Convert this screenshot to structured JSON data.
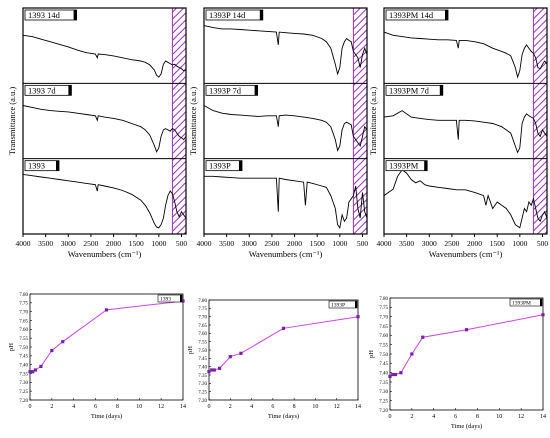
{
  "colors": {
    "ftir_line": "#000000",
    "hatch": "#9b30c8",
    "ph_line": "#cc44ee",
    "ph_point": "#7a1fa8"
  },
  "chart_data": [
    {
      "type": "line",
      "panel": "FTIR-1393",
      "xlabel": "Wavenumbers (cm⁻¹)",
      "ylabel": "Transmittance (a.u.)",
      "xlim": [
        4000,
        400
      ],
      "x_ticks": [
        "4000",
        "3500",
        "3000",
        "2500",
        "2000",
        "1500",
        "1000",
        "500"
      ],
      "series": [
        {
          "name": "1393_14d",
          "x": [
            4000,
            3800,
            3600,
            3400,
            3200,
            3000,
            2800,
            2600,
            2400,
            2360,
            2340,
            2200,
            2000,
            1800,
            1600,
            1400,
            1300,
            1200,
            1100,
            1050,
            1000,
            950,
            900,
            850,
            800,
            750,
            700,
            650,
            600,
            550,
            500,
            450,
            400
          ],
          "y": [
            0.7,
            0.68,
            0.64,
            0.6,
            0.56,
            0.52,
            0.47,
            0.43,
            0.41,
            0.35,
            0.41,
            0.4,
            0.38,
            0.35,
            0.32,
            0.3,
            0.28,
            0.24,
            0.16,
            0.08,
            0.05,
            0.1,
            0.25,
            0.3,
            0.28,
            0.26,
            0.24,
            0.25,
            0.22,
            0.2,
            0.18,
            0.15,
            0.17
          ]
        },
        {
          "name": "1393_7d",
          "x": [
            4000,
            3800,
            3600,
            3400,
            3200,
            3000,
            2800,
            2600,
            2400,
            2360,
            2340,
            2200,
            2000,
            1800,
            1600,
            1400,
            1300,
            1200,
            1100,
            1050,
            1000,
            950,
            900,
            850,
            800,
            750,
            700,
            650,
            600,
            550,
            500,
            450,
            400
          ],
          "y": [
            0.78,
            0.75,
            0.72,
            0.7,
            0.69,
            0.68,
            0.66,
            0.64,
            0.62,
            0.55,
            0.62,
            0.6,
            0.58,
            0.55,
            0.5,
            0.45,
            0.4,
            0.32,
            0.16,
            0.06,
            0.12,
            0.3,
            0.4,
            0.42,
            0.4,
            0.38,
            0.42,
            0.4,
            0.35,
            0.3,
            0.28,
            0.25,
            0.3
          ]
        },
        {
          "name": "1393",
          "x": [
            4000,
            3800,
            3600,
            3400,
            3200,
            3000,
            2800,
            2600,
            2400,
            2360,
            2340,
            2200,
            2000,
            1800,
            1600,
            1400,
            1300,
            1200,
            1100,
            1050,
            1000,
            950,
            900,
            850,
            800,
            750,
            700,
            650,
            600,
            550,
            500,
            450,
            400
          ],
          "y": [
            0.88,
            0.86,
            0.84,
            0.82,
            0.8,
            0.78,
            0.76,
            0.74,
            0.72,
            0.62,
            0.72,
            0.7,
            0.67,
            0.63,
            0.57,
            0.48,
            0.4,
            0.28,
            0.12,
            0.06,
            0.05,
            0.1,
            0.2,
            0.4,
            0.55,
            0.62,
            0.58,
            0.45,
            0.3,
            0.22,
            0.3,
            0.25,
            0.2
          ]
        }
      ],
      "hatch_range": [
        700,
        400
      ]
    },
    {
      "type": "line",
      "panel": "FTIR-1393P",
      "xlabel": "Wavenumbers (cm⁻¹)",
      "ylabel": "Transmittance (a.u.)",
      "xlim": [
        4000,
        400
      ],
      "x_ticks": [
        "4000",
        "3500",
        "3000",
        "2500",
        "2000",
        "1500",
        "1000",
        "500"
      ],
      "series": [
        {
          "name": "1393P_14d",
          "x": [
            4000,
            3800,
            3600,
            3400,
            3200,
            3000,
            2800,
            2600,
            2400,
            2360,
            2340,
            2200,
            2000,
            1800,
            1600,
            1400,
            1300,
            1200,
            1100,
            1050,
            1000,
            950,
            900,
            850,
            800,
            750,
            700,
            650,
            600,
            550,
            500,
            450,
            400
          ],
          "y": [
            0.85,
            0.82,
            0.8,
            0.8,
            0.79,
            0.78,
            0.77,
            0.76,
            0.75,
            0.55,
            0.75,
            0.74,
            0.73,
            0.72,
            0.7,
            0.65,
            0.6,
            0.5,
            0.25,
            0.1,
            0.2,
            0.5,
            0.6,
            0.65,
            0.62,
            0.6,
            0.45,
            0.4,
            0.35,
            0.2,
            0.4,
            0.5,
            0.4
          ]
        },
        {
          "name": "1393P_7d",
          "x": [
            4000,
            3800,
            3600,
            3400,
            3200,
            3000,
            2800,
            2600,
            2400,
            2360,
            2340,
            2200,
            2000,
            1800,
            1600,
            1400,
            1300,
            1200,
            1100,
            1050,
            1000,
            950,
            900,
            850,
            800,
            750,
            700,
            650,
            600,
            550,
            500,
            450,
            400
          ],
          "y": [
            0.78,
            0.7,
            0.66,
            0.64,
            0.63,
            0.62,
            0.61,
            0.62,
            0.62,
            0.45,
            0.62,
            0.63,
            0.62,
            0.6,
            0.58,
            0.55,
            0.52,
            0.45,
            0.25,
            0.08,
            0.15,
            0.4,
            0.5,
            0.52,
            0.5,
            0.48,
            0.3,
            0.25,
            0.2,
            0.15,
            0.3,
            0.45,
            0.4
          ]
        },
        {
          "name": "1393P",
          "x": [
            4000,
            3800,
            3600,
            3400,
            3200,
            3000,
            2800,
            2600,
            2400,
            2360,
            2340,
            2200,
            2000,
            1800,
            1760,
            1720,
            1600,
            1400,
            1300,
            1200,
            1100,
            1050,
            1000,
            950,
            900,
            850,
            800,
            750,
            700,
            650,
            600,
            550,
            500,
            450,
            400
          ],
          "y": [
            0.85,
            0.85,
            0.84,
            0.83,
            0.82,
            0.82,
            0.82,
            0.82,
            0.82,
            0.3,
            0.82,
            0.8,
            0.78,
            0.76,
            0.4,
            0.76,
            0.74,
            0.7,
            0.68,
            0.55,
            0.35,
            0.1,
            0.05,
            0.25,
            0.15,
            0.2,
            0.45,
            0.5,
            0.55,
            0.7,
            0.35,
            0.2,
            0.6,
            0.3,
            0.2
          ]
        }
      ],
      "hatch_range": [
        700,
        400
      ]
    },
    {
      "type": "line",
      "panel": "FTIR-1393PM",
      "xlabel": "Wavenumbers (cm⁻¹)",
      "ylabel": "Transmittance (a.u.)",
      "xlim": [
        4000,
        400
      ],
      "x_ticks": [
        "4000",
        "3500",
        "3000",
        "2500",
        "2000",
        "1500",
        "1000",
        "500"
      ],
      "series": [
        {
          "name": "1393PM_14d",
          "x": [
            4000,
            3800,
            3600,
            3400,
            3200,
            3000,
            2800,
            2600,
            2400,
            2360,
            2340,
            2200,
            2000,
            1800,
            1600,
            1400,
            1300,
            1200,
            1100,
            1050,
            1000,
            950,
            900,
            850,
            800,
            750,
            700,
            650,
            600,
            550,
            500,
            450,
            400
          ],
          "y": [
            0.75,
            0.7,
            0.68,
            0.66,
            0.65,
            0.64,
            0.63,
            0.63,
            0.62,
            0.5,
            0.62,
            0.62,
            0.6,
            0.57,
            0.5,
            0.45,
            0.42,
            0.38,
            0.2,
            0.05,
            0.15,
            0.4,
            0.5,
            0.55,
            0.5,
            0.45,
            0.42,
            0.35,
            0.2,
            0.18,
            0.25,
            0.3,
            0.25
          ]
        },
        {
          "name": "1393PM_7d",
          "x": [
            4000,
            3800,
            3600,
            3400,
            3200,
            3000,
            2800,
            2600,
            2400,
            2360,
            2340,
            2200,
            2000,
            1800,
            1600,
            1400,
            1300,
            1200,
            1100,
            1050,
            1000,
            950,
            900,
            850,
            800,
            750,
            700,
            650,
            600,
            550,
            500,
            450,
            400
          ],
          "y": [
            0.6,
            0.62,
            0.7,
            0.6,
            0.58,
            0.56,
            0.55,
            0.55,
            0.55,
            0.25,
            0.55,
            0.55,
            0.54,
            0.52,
            0.5,
            0.45,
            0.4,
            0.35,
            0.15,
            0.05,
            0.12,
            0.5,
            0.6,
            0.65,
            0.62,
            0.6,
            0.58,
            0.5,
            0.35,
            0.3,
            0.4,
            0.35,
            0.3
          ]
        },
        {
          "name": "1393PM",
          "x": [
            4000,
            3900,
            3800,
            3700,
            3600,
            3500,
            3400,
            3300,
            3200,
            3100,
            3000,
            2800,
            2600,
            2400,
            2200,
            2000,
            1800,
            1750,
            1700,
            1600,
            1500,
            1400,
            1300,
            1200,
            1100,
            1000,
            950,
            900,
            850,
            800,
            750,
            700,
            650,
            600,
            550,
            500,
            450,
            400
          ],
          "y": [
            0.55,
            0.6,
            0.65,
            0.85,
            0.95,
            0.9,
            0.8,
            0.75,
            0.78,
            0.72,
            0.7,
            0.68,
            0.66,
            0.64,
            0.64,
            0.6,
            0.55,
            0.4,
            0.55,
            0.35,
            0.45,
            0.4,
            0.35,
            0.25,
            0.1,
            0.05,
            0.2,
            0.35,
            0.3,
            0.45,
            0.4,
            0.5,
            0.35,
            0.2,
            0.15,
            0.25,
            0.3,
            0.2
          ]
        }
      ],
      "hatch_range": [
        700,
        400
      ]
    },
    {
      "type": "line",
      "panel": "pH-1393",
      "legend": "1393",
      "xlabel": "Time (days)",
      "ylabel": "pH",
      "xlim": [
        0,
        14
      ],
      "ylim": [
        7.2,
        7.8
      ],
      "x_ticks": [
        "0",
        "2",
        "4",
        "6",
        "8",
        "10",
        "12",
        "14"
      ],
      "y_ticks": [
        "7.20",
        "7.25",
        "7.30",
        "7.35",
        "7.40",
        "7.45",
        "7.50",
        "7.55",
        "7.60",
        "7.65",
        "7.70",
        "7.75",
        "7.80"
      ],
      "series": [
        {
          "name": "1393",
          "x": [
            0,
            0.25,
            0.5,
            1,
            2,
            3,
            7,
            14
          ],
          "y": [
            7.36,
            7.36,
            7.37,
            7.39,
            7.48,
            7.53,
            7.71,
            7.76
          ]
        }
      ]
    },
    {
      "type": "line",
      "panel": "pH-1393P",
      "legend": "1393P",
      "xlabel": "Time (days)",
      "ylabel": "pH",
      "xlim": [
        0,
        14
      ],
      "ylim": [
        7.2,
        7.8
      ],
      "x_ticks": [
        "0",
        "2",
        "4",
        "6",
        "8",
        "10",
        "12",
        "14"
      ],
      "y_ticks": [
        "7.20",
        "7.25",
        "7.30",
        "7.35",
        "7.40",
        "7.45",
        "7.50",
        "7.55",
        "7.60",
        "7.65",
        "7.70",
        "7.75",
        "7.80"
      ],
      "series": [
        {
          "name": "1393P",
          "x": [
            0,
            0.25,
            0.5,
            1,
            2,
            3,
            7,
            14
          ],
          "y": [
            7.37,
            7.38,
            7.38,
            7.39,
            7.46,
            7.48,
            7.63,
            7.7
          ]
        }
      ]
    },
    {
      "type": "line",
      "panel": "pH-1393PM",
      "legend": "1393PM",
      "xlabel": "Time (days)",
      "ylabel": "pH",
      "xlim": [
        0,
        14
      ],
      "ylim": [
        7.2,
        7.8
      ],
      "x_ticks": [
        "0",
        "2",
        "4",
        "6",
        "8",
        "10",
        "12",
        "14"
      ],
      "y_ticks": [
        "7.20",
        "7.25",
        "7.30",
        "7.35",
        "7.40",
        "7.45",
        "7.50",
        "7.55",
        "7.60",
        "7.65",
        "7.70",
        "7.75",
        "7.80"
      ],
      "series": [
        {
          "name": "1393PM",
          "x": [
            0,
            0.25,
            0.5,
            1,
            2,
            3,
            7,
            14
          ],
          "y": [
            7.38,
            7.39,
            7.39,
            7.4,
            7.5,
            7.59,
            7.63,
            7.71
          ]
        }
      ]
    }
  ],
  "labels": {
    "ftir_ylabel": "Transmittance (a.u.)",
    "ftir_xlabel": "Wavenumbers (cm⁻¹)",
    "ph_xlabel": "Time (days)",
    "ph_ylabel": "pH"
  }
}
